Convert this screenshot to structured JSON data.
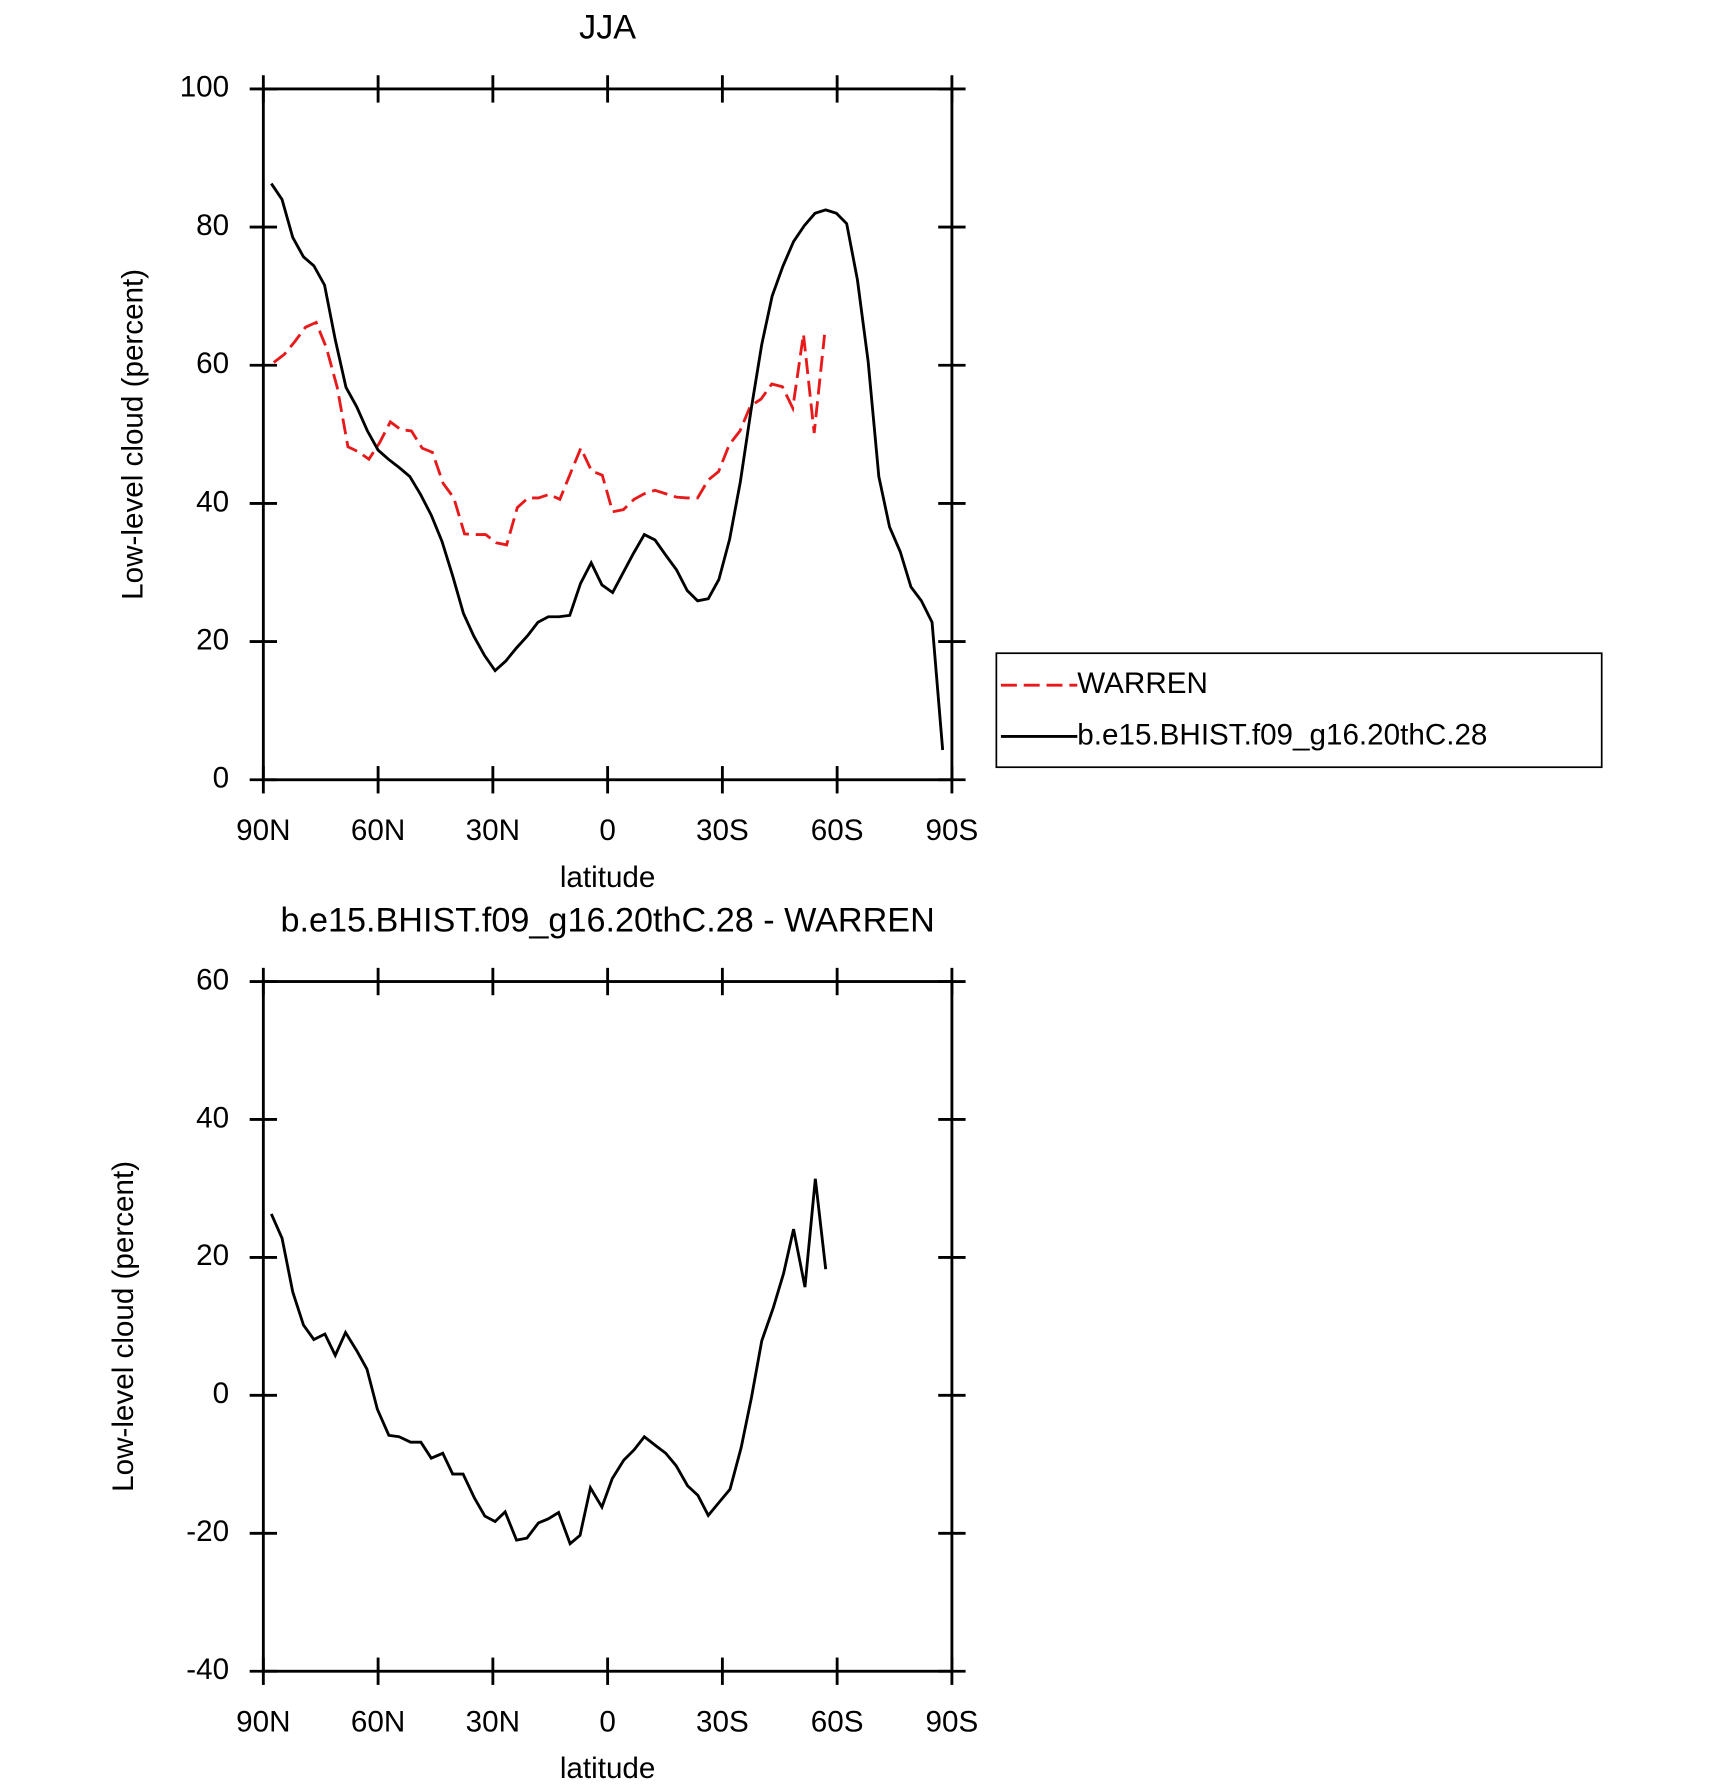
{
  "chart_data": [
    {
      "type": "line",
      "title": "JJA",
      "xlabel": "latitude",
      "ylabel": "Low-level cloud (percent)",
      "xlim": [
        90,
        -90
      ],
      "xticks": [
        {
          "value": 90,
          "label": "90N"
        },
        {
          "value": 60,
          "label": "60N"
        },
        {
          "value": 30,
          "label": "30N"
        },
        0,
        {
          "value": -30,
          "label": "30S"
        },
        {
          "value": -60,
          "label": "60S"
        },
        {
          "value": -90,
          "label": "90S"
        }
      ],
      "ylim": [
        0,
        100
      ],
      "yticks": [
        0,
        20,
        40,
        60,
        80,
        100
      ],
      "legend": true,
      "legend_position": "right",
      "series": [
        {
          "name": "WARREN",
          "color": "#e8191b",
          "dash": true,
          "x": [
            87.3,
            84.5,
            81.8,
            79.0,
            76.2,
            73.5,
            70.7,
            67.9,
            65.2,
            62.4,
            59.6,
            56.8,
            54.1,
            51.3,
            48.5,
            45.8,
            43.0,
            40.2,
            37.4,
            34.7,
            31.9,
            29.1,
            26.4,
            23.6,
            20.8,
            18.1,
            15.3,
            12.5,
            9.7,
            7.0,
            4.2,
            1.4,
            -1.3,
            -4.1,
            -6.9,
            -9.6,
            -12.4,
            -15.2,
            -18.0,
            -20.7,
            -23.5,
            -26.3,
            -29.0,
            -31.8,
            -34.6,
            -37.3,
            -40.1,
            -42.9,
            -45.7,
            -48.4,
            -51.2,
            -54.0,
            -56.7
          ],
          "values": [
            60.4,
            61.6,
            63.4,
            65.5,
            66.2,
            62.5,
            56.8,
            48.2,
            47.5,
            46.4,
            48.8,
            51.8,
            50.7,
            50.5,
            48.0,
            47.4,
            42.9,
            40.8,
            35.6,
            35.5,
            35.5,
            34.3,
            34.0,
            39.4,
            40.8,
            40.8,
            41.3,
            40.6,
            44.4,
            48.0,
            44.7,
            44.1,
            38.8,
            39.1,
            40.6,
            41.4,
            41.9,
            41.4,
            40.9,
            40.8,
            40.8,
            43.4,
            44.6,
            48.5,
            50.5,
            54.1,
            55.1,
            57.3,
            56.9,
            53.8,
            64.5,
            50.2,
            64.4
          ]
        },
        {
          "name": "b.e15.BHIST.f09_g16.20thC.28",
          "color": "#000000",
          "dash": false,
          "x": [
            87.9,
            85.1,
            82.3,
            79.5,
            76.8,
            74.0,
            71.2,
            68.4,
            65.6,
            62.8,
            60.0,
            57.3,
            54.5,
            51.7,
            48.9,
            46.1,
            43.3,
            40.5,
            37.7,
            35.0,
            32.2,
            29.4,
            26.6,
            23.8,
            21.0,
            18.2,
            15.5,
            12.7,
            9.9,
            7.1,
            4.3,
            1.5,
            -1.3,
            -4.0,
            -6.8,
            -9.6,
            -12.4,
            -15.2,
            -18.0,
            -20.8,
            -23.5,
            -26.3,
            -29.1,
            -31.9,
            -34.7,
            -37.5,
            -40.3,
            -43.0,
            -45.8,
            -48.6,
            -51.4,
            -54.2,
            -57.0,
            -59.8,
            -62.5,
            -65.3,
            -68.1,
            -70.9,
            -73.7,
            -76.5,
            -79.3,
            -82.0,
            -84.8,
            -87.6
          ],
          "values": [
            86.3,
            84.0,
            78.5,
            75.7,
            74.4,
            71.6,
            63.7,
            56.8,
            54.0,
            50.5,
            47.7,
            46.4,
            45.2,
            43.9,
            41.3,
            38.3,
            34.5,
            29.5,
            24.1,
            20.8,
            18.0,
            15.8,
            17.2,
            19.1,
            20.8,
            22.8,
            23.6,
            23.6,
            23.8,
            28.4,
            31.4,
            28.2,
            27.1,
            29.9,
            32.8,
            35.5,
            34.7,
            32.5,
            30.4,
            27.4,
            25.9,
            26.2,
            29.0,
            34.8,
            43.1,
            53.5,
            63.0,
            70.0,
            74.3,
            77.9,
            80.2,
            82.0,
            82.5,
            82.0,
            80.5,
            72.4,
            60.6,
            43.9,
            36.6,
            33.0,
            27.9,
            25.9,
            22.8,
            4.3
          ]
        }
      ]
    },
    {
      "type": "line",
      "title": "b.e15.BHIST.f09_g16.20thC.28 - WARREN",
      "xlabel": "latitude",
      "ylabel": "Low-level cloud (percent)",
      "xlim": [
        90,
        -90
      ],
      "xticks": [
        {
          "value": 90,
          "label": "90N"
        },
        {
          "value": 60,
          "label": "60N"
        },
        {
          "value": 30,
          "label": "30N"
        },
        0,
        {
          "value": -30,
          "label": "30S"
        },
        {
          "value": -60,
          "label": "60S"
        },
        {
          "value": -90,
          "label": "90S"
        }
      ],
      "ylim": [
        -40,
        60
      ],
      "yticks": [
        -40,
        -20,
        0,
        20,
        40,
        60
      ],
      "legend": false,
      "series": [
        {
          "color": "#000000",
          "dash": false,
          "x": [
            87.9,
            85.1,
            82.3,
            79.5,
            76.8,
            73.9,
            71.2,
            68.5,
            65.5,
            62.9,
            60.2,
            57.2,
            54.5,
            51.5,
            48.8,
            46.1,
            43.1,
            40.5,
            37.8,
            34.8,
            32.1,
            29.4,
            26.8,
            23.8,
            21.1,
            18.1,
            15.5,
            12.8,
            9.8,
            7.2,
            4.5,
            1.5,
            -1.2,
            -4.2,
            -6.9,
            -9.6,
            -12.6,
            -15.2,
            -17.9,
            -20.9,
            -23.6,
            -26.3,
            -29.3,
            -32.0,
            -34.9,
            -37.6,
            -40.3,
            -43.3,
            -46.0,
            -48.6,
            -51.6,
            -54.3,
            -57.0
          ],
          "values": [
            26.3,
            22.8,
            15.0,
            10.2,
            8.1,
            8.9,
            5.8,
            9.1,
            6.4,
            3.8,
            -2.0,
            -5.8,
            -6.0,
            -6.8,
            -6.8,
            -9.1,
            -8.4,
            -11.4,
            -11.4,
            -14.9,
            -17.5,
            -18.3,
            -16.9,
            -21.0,
            -20.7,
            -18.5,
            -17.9,
            -17.0,
            -21.5,
            -20.3,
            -13.4,
            -16.2,
            -12.1,
            -9.4,
            -7.9,
            -6.0,
            -7.3,
            -8.4,
            -10.2,
            -13.1,
            -14.5,
            -17.4,
            -15.4,
            -13.6,
            -7.6,
            -0.3,
            7.9,
            12.7,
            17.7,
            24.1,
            15.7,
            31.4,
            18.3
          ]
        }
      ]
    }
  ]
}
